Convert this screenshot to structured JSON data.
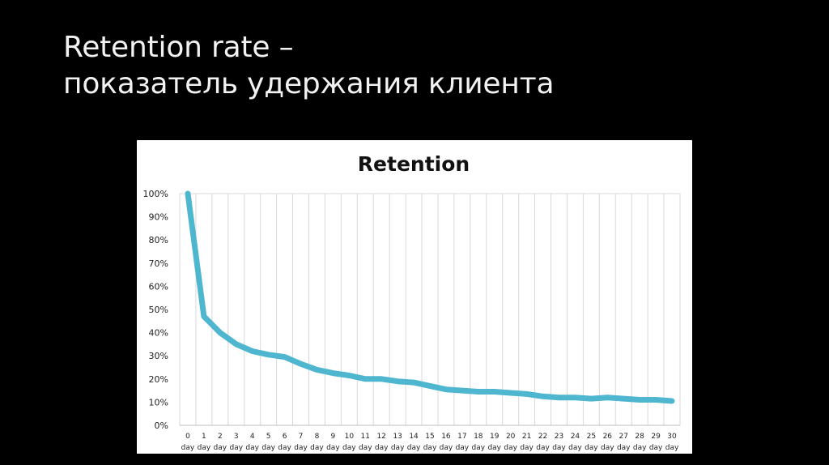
{
  "slide": {
    "title_line1": "Retention rate –",
    "title_line2": "показатель удержания клиента"
  },
  "chart_data": {
    "type": "line",
    "title": "Retention",
    "xlabel": "",
    "ylabel": "",
    "x": [
      "0",
      "1",
      "2",
      "3",
      "4",
      "5",
      "6",
      "7",
      "8",
      "9",
      "10",
      "11",
      "12",
      "13",
      "14",
      "15",
      "16",
      "17",
      "18",
      "19",
      "20",
      "21",
      "22",
      "23",
      "24",
      "25",
      "26",
      "27",
      "28",
      "29",
      "30"
    ],
    "x_sublabel": "day",
    "y_tick_labels": [
      "0%",
      "10%",
      "20%",
      "30%",
      "40%",
      "50%",
      "60%",
      "70%",
      "80%",
      "90%",
      "100%"
    ],
    "ylim": [
      0,
      100
    ],
    "grid": "vertical",
    "legend": "none",
    "series": [
      {
        "color": "#4fb6cf",
        "values": [
          100,
          47,
          40,
          35,
          32,
          30.5,
          29.5,
          26.5,
          24,
          22.5,
          21.5,
          20,
          20,
          19,
          18.5,
          17,
          15.5,
          15,
          14.5,
          14.5,
          14,
          13.5,
          12.5,
          12,
          12,
          11.5,
          12,
          11.5,
          11,
          11,
          10.5
        ]
      }
    ]
  }
}
